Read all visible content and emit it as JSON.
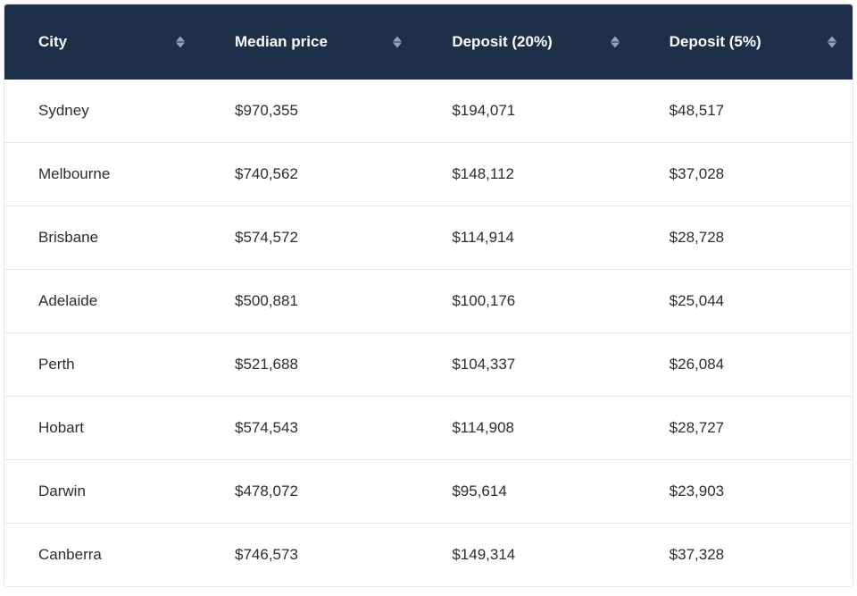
{
  "table": {
    "type": "table",
    "header_background": "#1e2f4a",
    "header_text_color": "#ffffff",
    "row_background": "#ffffff",
    "row_border_color": "#e5e7eb",
    "cell_text_color": "#2d2d2d",
    "header_fontsize": 17,
    "cell_fontsize": 17,
    "columns": [
      {
        "label": "City",
        "sortable": true
      },
      {
        "label": "Median price",
        "sortable": true
      },
      {
        "label": "Deposit (20%)",
        "sortable": true
      },
      {
        "label": "Deposit (5%)",
        "sortable": true
      }
    ],
    "rows": [
      {
        "city": "Sydney",
        "median": "$970,355",
        "dep20": "$194,071",
        "dep5": "$48,517"
      },
      {
        "city": "Melbourne",
        "median": "$740,562",
        "dep20": "$148,112",
        "dep5": "$37,028"
      },
      {
        "city": "Brisbane",
        "median": "$574,572",
        "dep20": "$114,914",
        "dep5": "$28,728"
      },
      {
        "city": "Adelaide",
        "median": "$500,881",
        "dep20": "$100,176",
        "dep5": "$25,044"
      },
      {
        "city": "Perth",
        "median": "$521,688",
        "dep20": "$104,337",
        "dep5": "$26,084"
      },
      {
        "city": "Hobart",
        "median": "$574,543",
        "dep20": "$114,908",
        "dep5": "$28,727"
      },
      {
        "city": "Darwin",
        "median": "$478,072",
        "dep20": "$95,614",
        "dep5": "$23,903"
      },
      {
        "city": "Canberra",
        "median": "$746,573",
        "dep20": "$149,314",
        "dep5": "$37,328"
      }
    ]
  }
}
